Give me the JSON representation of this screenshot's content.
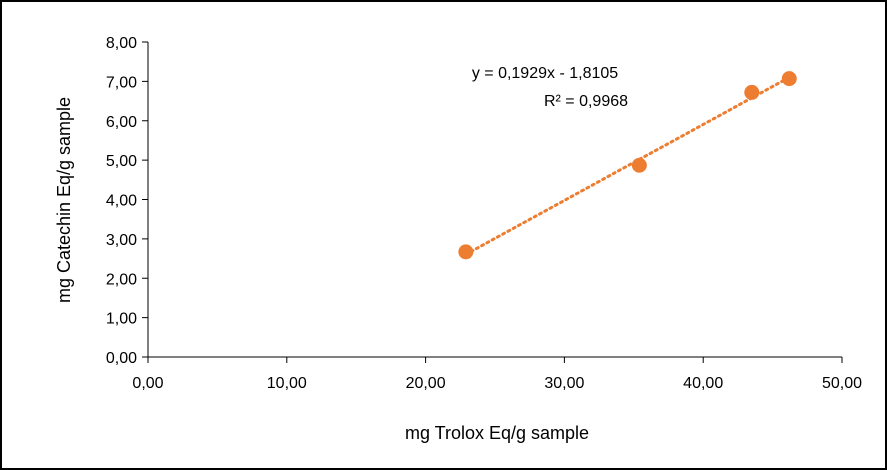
{
  "chart_data": {
    "type": "scatter",
    "xlabel": "mg Trolox Eq/g sample",
    "ylabel": "mg Catechin Eq/g sample",
    "xlim": [
      0,
      50
    ],
    "ylim": [
      0,
      8
    ],
    "x_ticks": [
      "0,00",
      "10,00",
      "20,00",
      "30,00",
      "40,00",
      "50,00"
    ],
    "y_ticks": [
      "0,00",
      "1,00",
      "2,00",
      "3,00",
      "4,00",
      "5,00",
      "6,00",
      "7,00",
      "8,00"
    ],
    "grid": false,
    "legend": "none",
    "series": [
      {
        "x": [
          22.9,
          35.4,
          43.5,
          46.2
        ],
        "y": [
          2.67,
          4.87,
          6.72,
          7.07
        ],
        "color": "#ED7D31"
      }
    ],
    "trendline": {
      "slope": 0.1929,
      "intercept": -1.8105,
      "x_range": [
        22.9,
        46.2
      ],
      "style": "dotted",
      "color": "#ED7D31",
      "equation": "y = 0,1929x - 1,8105",
      "r_squared": "R² = 0,9968"
    }
  }
}
